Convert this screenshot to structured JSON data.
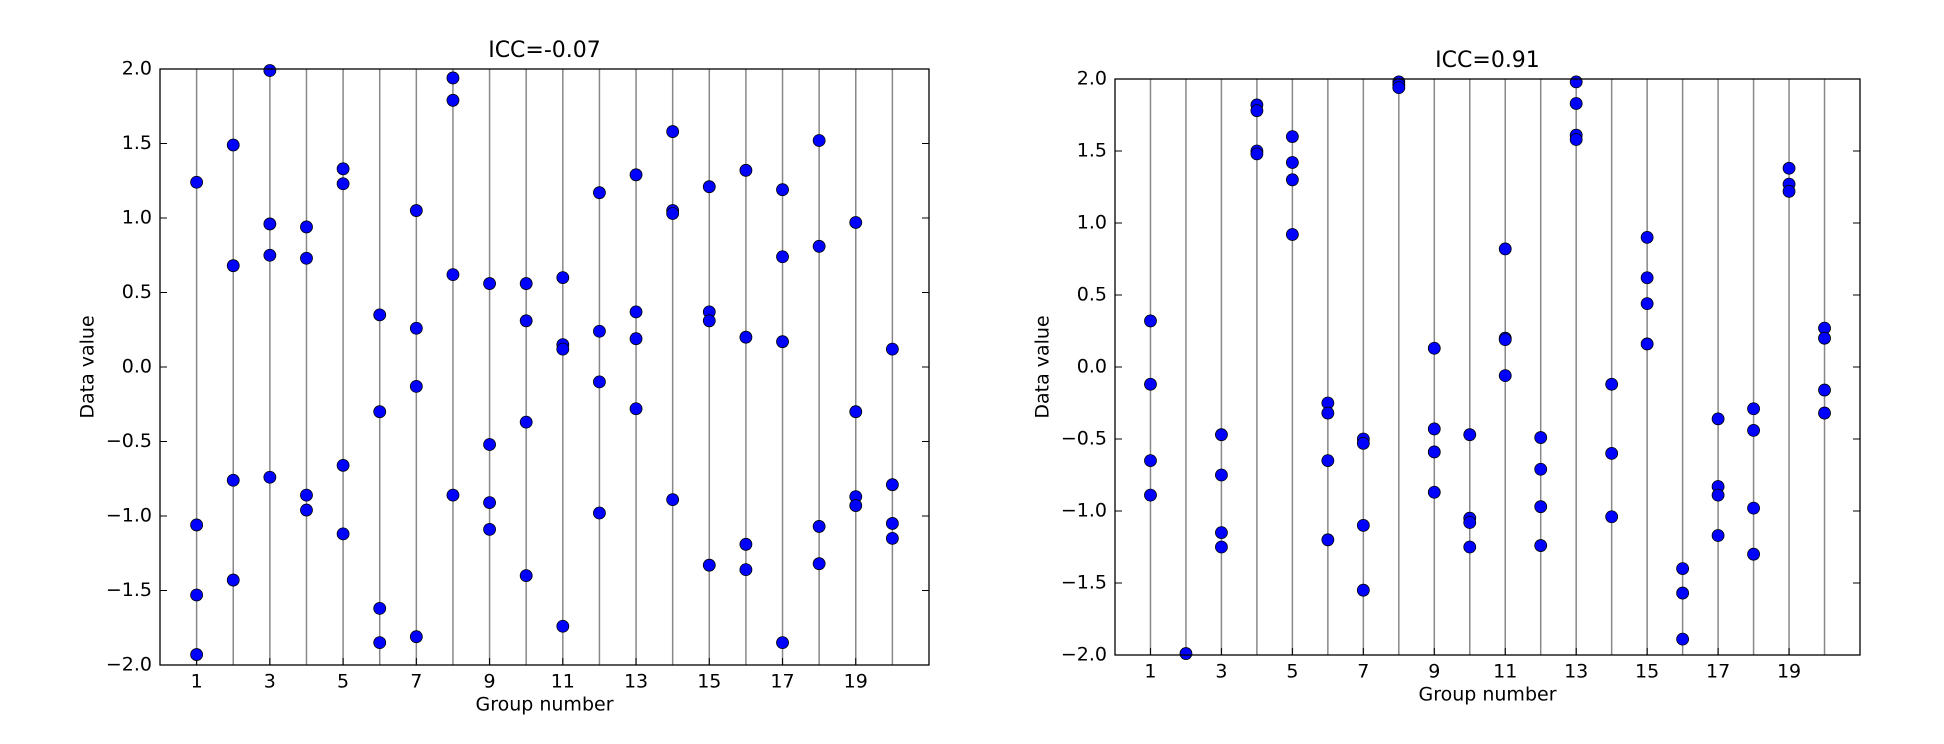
{
  "chart_data": [
    {
      "type": "scatter",
      "title": "ICC=-0.07",
      "xlabel": "Group number",
      "ylabel": "Data value",
      "xlim": [
        0,
        21
      ],
      "xticks": [
        1,
        3,
        5,
        7,
        9,
        11,
        13,
        15,
        17,
        19
      ],
      "ylim": [
        -2,
        2
      ],
      "yticks": [
        {
          "value": -2,
          "label": "−2.0"
        },
        {
          "value": -1.5,
          "label": "−1.5"
        },
        {
          "value": -1,
          "label": "−1.0"
        },
        {
          "value": -0.5,
          "label": "−0.5"
        },
        {
          "value": 0,
          "label": "0.0"
        },
        {
          "value": 0.5,
          "label": "0.5"
        },
        {
          "value": 1,
          "label": "1.0"
        },
        {
          "value": 1.5,
          "label": "1.5"
        },
        {
          "value": 2,
          "label": "2.0"
        }
      ],
      "series": [
        {
          "color": "#0000ff",
          "x": [
            1,
            1,
            1,
            1,
            2,
            2,
            2,
            2,
            3,
            3,
            3,
            3,
            4,
            4,
            4,
            4,
            5,
            5,
            5,
            5,
            6,
            6,
            6,
            6,
            7,
            7,
            7,
            7,
            8,
            8,
            8,
            8,
            9,
            9,
            9,
            9,
            10,
            10,
            10,
            10,
            11,
            11,
            11,
            11,
            12,
            12,
            12,
            12,
            13,
            13,
            13,
            13,
            14,
            14,
            14,
            14,
            15,
            15,
            15,
            15,
            16,
            16,
            16,
            16,
            17,
            17,
            17,
            17,
            18,
            18,
            18,
            18,
            19,
            19,
            19,
            19,
            20,
            20,
            20,
            20
          ],
          "values": [
            1.24,
            -1.06,
            -1.53,
            -1.93,
            1.49,
            0.68,
            -0.76,
            -1.43,
            1.99,
            0.96,
            0.75,
            -0.74,
            0.94,
            0.73,
            -0.86,
            -0.96,
            1.33,
            1.23,
            -0.66,
            -1.12,
            0.35,
            -0.3,
            -1.62,
            -1.85,
            1.05,
            0.26,
            -0.13,
            -1.81,
            1.94,
            1.79,
            0.62,
            -0.86,
            0.56,
            -0.52,
            -0.91,
            -1.09,
            0.56,
            0.31,
            -0.37,
            -1.4,
            0.6,
            0.15,
            0.12,
            -1.74,
            1.17,
            0.24,
            -0.1,
            -0.98,
            1.29,
            0.37,
            0.19,
            -0.28,
            1.58,
            1.05,
            1.03,
            -0.89,
            1.21,
            0.37,
            0.31,
            -1.33,
            1.32,
            0.2,
            -1.19,
            -1.36,
            1.19,
            0.74,
            0.17,
            -1.85,
            1.52,
            0.81,
            -1.07,
            -1.32,
            0.97,
            -0.3,
            -0.87,
            -0.93,
            0.12,
            -0.79,
            -1.05,
            -1.15
          ]
        }
      ]
    },
    {
      "type": "scatter",
      "title": "ICC=0.91",
      "xlabel": "Group number",
      "ylabel": "Data value",
      "xlim": [
        0,
        21
      ],
      "xticks": [
        1,
        3,
        5,
        7,
        9,
        11,
        13,
        15,
        17,
        19
      ],
      "ylim": [
        -2,
        2
      ],
      "yticks": [
        {
          "value": -2,
          "label": "−2.0"
        },
        {
          "value": -1.5,
          "label": "−1.5"
        },
        {
          "value": -1,
          "label": "−1.0"
        },
        {
          "value": -0.5,
          "label": "−0.5"
        },
        {
          "value": 0,
          "label": "0.0"
        },
        {
          "value": 0.5,
          "label": "0.5"
        },
        {
          "value": 1,
          "label": "1.0"
        },
        {
          "value": 1.5,
          "label": "1.5"
        },
        {
          "value": 2,
          "label": "2.0"
        }
      ],
      "series": [
        {
          "color": "#0000ff",
          "x": [
            1,
            1,
            1,
            1,
            2,
            3,
            3,
            3,
            3,
            4,
            4,
            4,
            4,
            5,
            5,
            5,
            5,
            6,
            6,
            6,
            6,
            7,
            7,
            7,
            7,
            8,
            8,
            8,
            9,
            9,
            9,
            9,
            10,
            10,
            10,
            10,
            11,
            11,
            11,
            11,
            12,
            12,
            12,
            12,
            13,
            13,
            13,
            13,
            14,
            14,
            14,
            15,
            15,
            15,
            15,
            16,
            16,
            16,
            17,
            17,
            17,
            17,
            18,
            18,
            18,
            18,
            19,
            19,
            19,
            20,
            20,
            20,
            20
          ],
          "values": [
            0.32,
            -0.12,
            -0.65,
            -0.89,
            -1.99,
            -0.47,
            -0.75,
            -1.15,
            -1.25,
            1.82,
            1.78,
            1.5,
            1.48,
            1.6,
            1.42,
            1.3,
            0.92,
            -0.25,
            -0.32,
            -0.65,
            -1.2,
            -0.5,
            -0.53,
            -1.1,
            -1.55,
            1.98,
            1.96,
            1.94,
            0.13,
            -0.43,
            -0.59,
            -0.87,
            -0.47,
            -1.05,
            -1.08,
            -1.25,
            0.82,
            0.2,
            0.19,
            -0.06,
            -0.49,
            -0.71,
            -0.97,
            -1.24,
            1.98,
            1.83,
            1.61,
            1.58,
            -0.12,
            -0.6,
            -1.04,
            0.9,
            0.62,
            0.44,
            0.16,
            -1.4,
            -1.57,
            -1.89,
            -0.36,
            -0.83,
            -0.89,
            -1.17,
            -0.29,
            -0.44,
            -0.98,
            -1.3,
            1.38,
            1.27,
            1.22,
            0.27,
            0.2,
            -0.16,
            -0.32
          ]
        }
      ]
    }
  ]
}
